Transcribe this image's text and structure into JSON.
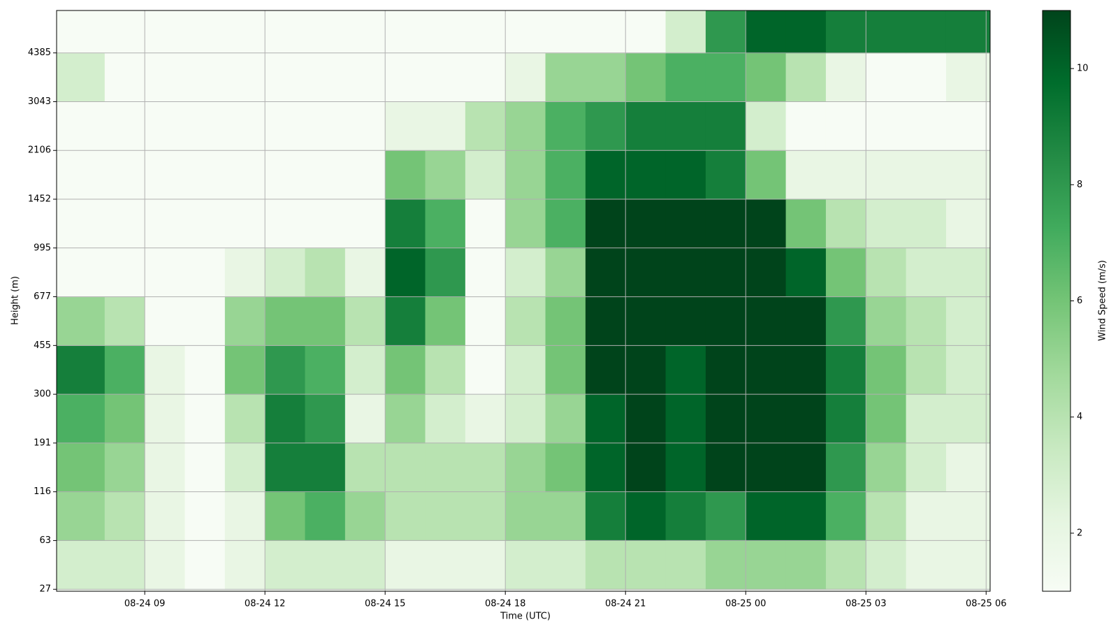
{
  "chart_data": {
    "type": "heatmap",
    "xlabel": "Time (UTC)",
    "ylabel": "Height (m)",
    "colorbar_label": "Wind Speed (m/s)",
    "colormap": [
      "#f7fcf5",
      "#e5f5e0",
      "#c7e9c0",
      "#a1d99b",
      "#74c476",
      "#41ab5d",
      "#238b45",
      "#006d2c",
      "#00441b"
    ],
    "grid": true,
    "xlim": [
      6.8,
      30.1
    ],
    "xticks": [
      {
        "value": 9,
        "label": "08-24 09"
      },
      {
        "value": 12,
        "label": "08-24 12"
      },
      {
        "value": 15,
        "label": "08-24 15"
      },
      {
        "value": 18,
        "label": "08-24 18"
      },
      {
        "value": 21,
        "label": "08-24 21"
      },
      {
        "value": 24,
        "label": "08-25 00"
      },
      {
        "value": 27,
        "label": "08-25 03"
      },
      {
        "value": 30,
        "label": "08-25 06"
      }
    ],
    "ylim": [
      -0.04,
      11.87
    ],
    "yticks": [
      {
        "value": 0,
        "label": "27"
      },
      {
        "value": 1,
        "label": "63"
      },
      {
        "value": 2,
        "label": "116"
      },
      {
        "value": 3,
        "label": "191"
      },
      {
        "value": 4,
        "label": "300"
      },
      {
        "value": 5,
        "label": "455"
      },
      {
        "value": 6,
        "label": "677"
      },
      {
        "value": 7,
        "label": "995"
      },
      {
        "value": 8,
        "label": "1452"
      },
      {
        "value": 9,
        "label": "2106"
      },
      {
        "value": 10,
        "label": "3043"
      },
      {
        "value": 11,
        "label": "4385"
      }
    ],
    "x_edges": [
      6.8,
      8,
      9,
      10,
      11,
      12,
      13,
      14,
      15,
      16,
      17,
      18,
      19,
      20,
      21,
      22,
      23,
      24,
      25,
      26,
      27,
      28,
      29,
      30.1
    ],
    "y_edges": [
      0,
      1,
      2,
      3,
      4,
      5,
      6,
      7,
      8,
      9,
      10,
      11,
      11.87
    ],
    "clim": [
      1,
      11
    ],
    "cticks": [
      2,
      4,
      6,
      8,
      10
    ],
    "z": [
      [
        3,
        3,
        2,
        1,
        2,
        3,
        3,
        3,
        2,
        2,
        2,
        3,
        3,
        4,
        4,
        4,
        5,
        5,
        5,
        4,
        3,
        2,
        2
      ],
      [
        5,
        4,
        2,
        1,
        2,
        6,
        7,
        5,
        4,
        4,
        4,
        5,
        5,
        9,
        10,
        9,
        8,
        10,
        10,
        7,
        4,
        2,
        2
      ],
      [
        6,
        5,
        2,
        1,
        3,
        9,
        9,
        4,
        4,
        4,
        4,
        5,
        6,
        10,
        11,
        10,
        11,
        11,
        11,
        8,
        5,
        3,
        2
      ],
      [
        7,
        6,
        2,
        1,
        4,
        9,
        8,
        2,
        5,
        3,
        2,
        3,
        5,
        10,
        11,
        10,
        11,
        11,
        11,
        9,
        6,
        3,
        3
      ],
      [
        9,
        7,
        2,
        1,
        6,
        8,
        7,
        3,
        6,
        4,
        1,
        3,
        6,
        11,
        11,
        10,
        11,
        11,
        11,
        9,
        6,
        4,
        3
      ],
      [
        5,
        4,
        1,
        1,
        5,
        6,
        6,
        4,
        9,
        6,
        1,
        4,
        6,
        11,
        11,
        11,
        11,
        11,
        11,
        8,
        5,
        4,
        3
      ],
      [
        1,
        1,
        1,
        1,
        2,
        3,
        4,
        2,
        10,
        8,
        1,
        3,
        5,
        11,
        11,
        11,
        11,
        11,
        10,
        6,
        4,
        3,
        3
      ],
      [
        1,
        1,
        1,
        1,
        1,
        1,
        1,
        1,
        9,
        7,
        1,
        5,
        7,
        11,
        11,
        11,
        11,
        11,
        6,
        4,
        3,
        3,
        2
      ],
      [
        1,
        1,
        1,
        1,
        1,
        1,
        1,
        1,
        6,
        5,
        3,
        5,
        7,
        10,
        10,
        10,
        9,
        6,
        2,
        2,
        2,
        2,
        2
      ],
      [
        1,
        1,
        1,
        1,
        1,
        1,
        1,
        1,
        2,
        2,
        4,
        5,
        7,
        8,
        9,
        9,
        9,
        3,
        1,
        1,
        1,
        1,
        1
      ],
      [
        3,
        1,
        1,
        1,
        1,
        1,
        1,
        1,
        1,
        1,
        1,
        2,
        5,
        5,
        6,
        7,
        7,
        6,
        4,
        2,
        1,
        1,
        2
      ],
      [
        1,
        1,
        1,
        1,
        1,
        1,
        1,
        1,
        1,
        1,
        1,
        1,
        1,
        1,
        1,
        3,
        8,
        10,
        10,
        9,
        9,
        9,
        9
      ]
    ]
  }
}
